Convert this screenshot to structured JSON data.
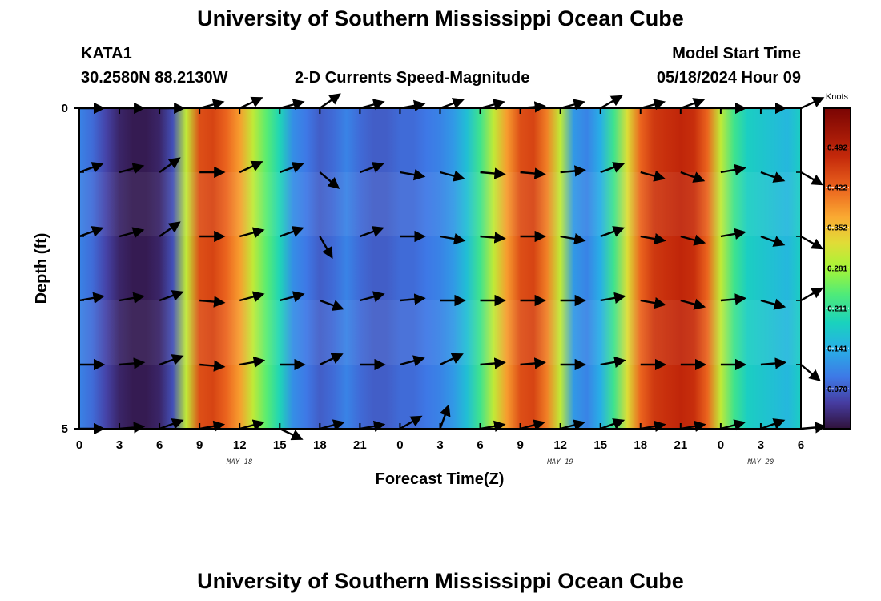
{
  "page": {
    "title_top": "University of Southern Mississippi Ocean Cube",
    "title_bottom": "University of Southern Mississippi Ocean Cube",
    "station": "KATA1",
    "location": "30.2580N  88.2130W",
    "plot_name": "2-D Currents Speed-Magnitude",
    "model_start_label": "Model Start Time",
    "model_start_value": "05/18/2024 Hour 09"
  },
  "chart_data": {
    "type": "heatmap",
    "title": "2-D Currents Speed-Magnitude",
    "xlabel": "Forecast Time(Z)",
    "ylabel": "Depth (ft)",
    "x_tick_labels": [
      "0",
      "3",
      "6",
      "9",
      "12",
      "15",
      "18",
      "21",
      "0",
      "3",
      "6",
      "9",
      "12",
      "15",
      "18",
      "21",
      "0",
      "3",
      "6"
    ],
    "y_tick_labels": [
      "0",
      "5"
    ],
    "ylim": [
      0,
      5
    ],
    "date_labels": [
      {
        "text": "MAY 18",
        "at_hour": 12
      },
      {
        "text": "MAY 19",
        "at_hour": 36
      },
      {
        "text": "MAY 20",
        "at_hour": 51
      }
    ],
    "colorbar": {
      "unit": "Knots",
      "vmin": 0.0,
      "vmax": 0.56,
      "tick_labels": [
        "0.492",
        "0.422",
        "0.352",
        "0.281",
        "0.211",
        "0.141",
        "0.070"
      ],
      "tick_values": [
        0.492,
        0.422,
        0.352,
        0.281,
        0.211,
        0.141,
        0.07
      ]
    },
    "depth_rows": [
      0,
      1,
      2,
      3,
      4,
      5
    ],
    "speed_profile": {
      "hours": [
        0,
        1,
        2,
        3,
        4,
        5,
        6,
        7,
        8,
        9,
        10,
        11,
        12,
        13,
        14,
        15,
        16,
        17,
        18,
        19,
        20,
        21,
        22,
        23,
        24,
        25,
        26,
        27,
        28,
        29,
        30,
        31,
        32,
        33,
        34,
        35,
        36,
        37,
        38,
        39,
        40,
        41,
        42,
        43,
        44,
        45,
        46,
        47,
        48,
        49,
        50,
        51,
        52,
        53,
        54
      ],
      "speed_knots": [
        0.1,
        0.08,
        0.05,
        0.02,
        0.01,
        0.01,
        0.02,
        0.06,
        0.3,
        0.44,
        0.45,
        0.42,
        0.38,
        0.3,
        0.24,
        0.19,
        0.11,
        0.09,
        0.07,
        0.08,
        0.1,
        0.08,
        0.07,
        0.07,
        0.08,
        0.08,
        0.09,
        0.1,
        0.12,
        0.16,
        0.22,
        0.3,
        0.38,
        0.44,
        0.45,
        0.4,
        0.3,
        0.12,
        0.1,
        0.14,
        0.22,
        0.32,
        0.42,
        0.46,
        0.47,
        0.48,
        0.47,
        0.42,
        0.3,
        0.22,
        0.18,
        0.17,
        0.16,
        0.15,
        0.18
      ]
    },
    "arrow_hours": [
      0,
      3,
      6,
      9,
      12,
      15,
      18,
      21,
      24,
      27,
      30,
      33,
      36,
      39,
      42,
      45,
      48,
      51,
      54
    ],
    "arrow_angles_deg": [
      [
        0,
        0,
        0,
        -15,
        -25,
        -15,
        -35,
        -15,
        -10,
        -20,
        -15,
        -5,
        -15,
        -30,
        -15,
        -20,
        0,
        0,
        -25
      ],
      [
        -20,
        -15,
        -35,
        0,
        -25,
        -20,
        40,
        -20,
        10,
        15,
        5,
        5,
        -5,
        -20,
        15,
        20,
        -10,
        20,
        30
      ],
      [
        -20,
        -15,
        -35,
        0,
        -15,
        -20,
        60,
        -20,
        0,
        10,
        5,
        0,
        10,
        -20,
        10,
        15,
        -10,
        20,
        30
      ],
      [
        -10,
        -10,
        -20,
        5,
        -15,
        -15,
        20,
        -15,
        -5,
        0,
        0,
        0,
        0,
        -10,
        10,
        15,
        -5,
        15,
        -30
      ],
      [
        0,
        -5,
        -20,
        5,
        -10,
        0,
        -25,
        0,
        -15,
        -25,
        -5,
        -5,
        0,
        -10,
        0,
        0,
        0,
        -5,
        40
      ],
      [
        0,
        -5,
        -20,
        -10,
        -15,
        25,
        -15,
        -10,
        -30,
        -70,
        -10,
        -15,
        -15,
        -20,
        -10,
        -10,
        -15,
        -20,
        -5
      ]
    ]
  }
}
